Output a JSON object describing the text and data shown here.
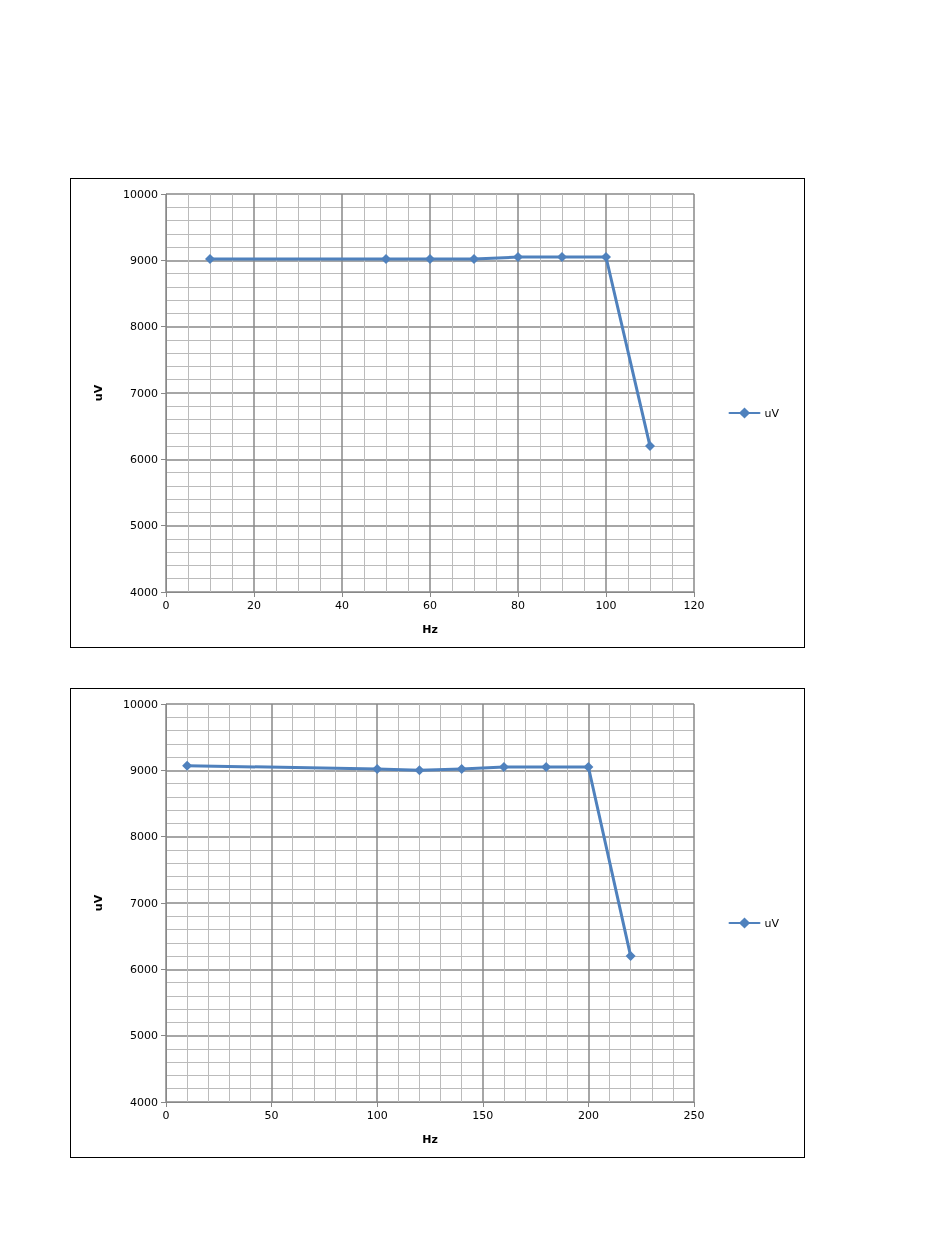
{
  "chart_data": [
    {
      "type": "line",
      "xlabel": "Hz",
      "ylabel": "uV",
      "x": [
        10,
        50,
        60,
        70,
        80,
        90,
        100,
        110
      ],
      "series": [
        {
          "name": "uV",
          "color": "#4f81bd",
          "values": [
            9020,
            9020,
            9020,
            9020,
            9050,
            9050,
            9050,
            6200
          ]
        }
      ],
      "xlim": [
        0,
        120
      ],
      "xticks": [
        0,
        20,
        40,
        60,
        80,
        100,
        120
      ],
      "ylim": [
        4000,
        10000
      ],
      "yticks": [
        4000,
        5000,
        6000,
        7000,
        8000,
        9000,
        10000
      ],
      "grid": true,
      "legend": "right",
      "marker": "diamond",
      "line_style": "solid"
    },
    {
      "type": "line",
      "xlabel": "Hz",
      "ylabel": "uV",
      "x": [
        10,
        100,
        120,
        140,
        160,
        180,
        200,
        220
      ],
      "series": [
        {
          "name": "uV",
          "color": "#4f81bd",
          "values": [
            9070,
            9020,
            9000,
            9020,
            9050,
            9050,
            9050,
            6200
          ]
        }
      ],
      "xlim": [
        0,
        250
      ],
      "xticks": [
        0,
        50,
        100,
        150,
        200,
        250
      ],
      "ylim": [
        4000,
        10000
      ],
      "yticks": [
        4000,
        5000,
        6000,
        7000,
        8000,
        9000,
        10000
      ],
      "grid": true,
      "legend": "right",
      "marker": "diamond",
      "line_style": "solid"
    }
  ]
}
